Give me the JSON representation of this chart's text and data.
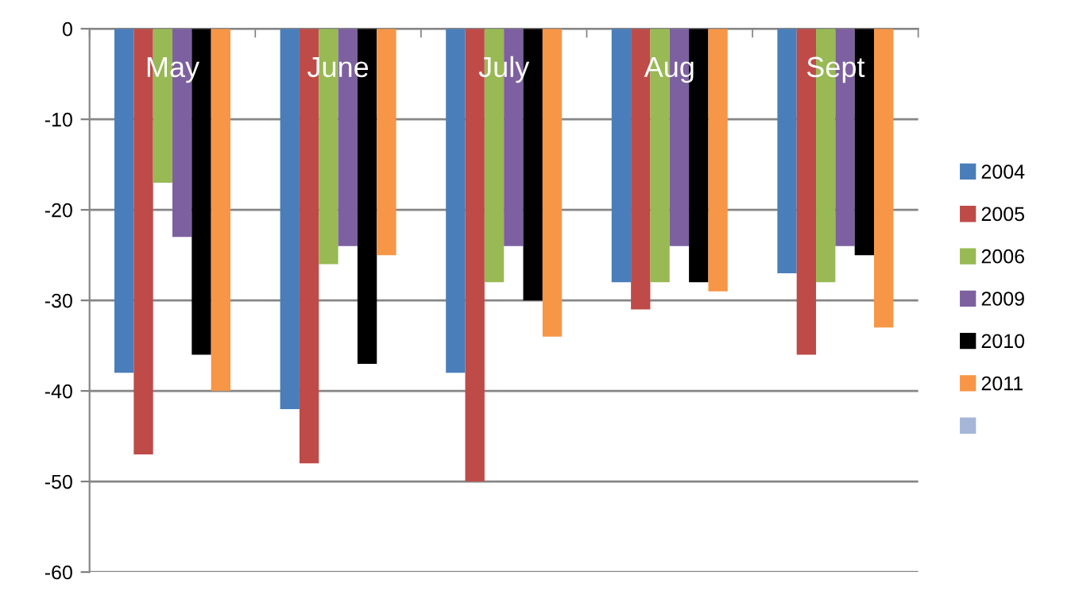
{
  "chart_data": {
    "type": "bar",
    "categories": [
      "May",
      "June",
      "July",
      "Aug",
      "Sept"
    ],
    "series": [
      {
        "name": "2004",
        "color": "#4a7ebb",
        "values": [
          -38,
          -42,
          -38,
          -28,
          -27
        ]
      },
      {
        "name": "2005",
        "color": "#be4b48",
        "values": [
          -47,
          -48,
          -50,
          -31,
          -36
        ]
      },
      {
        "name": "2006",
        "color": "#98b954",
        "values": [
          -17,
          -26,
          -28,
          -28,
          -28
        ]
      },
      {
        "name": "2009",
        "color": "#7d60a0",
        "values": [
          -23,
          -24,
          -24,
          -24,
          -24
        ]
      },
      {
        "name": "2010",
        "color": "#000000",
        "values": [
          -36,
          -37,
          -30,
          -28,
          -25
        ]
      },
      {
        "name": "2011",
        "color": "#f79646",
        "values": [
          -40,
          -25,
          -34,
          -29,
          -33
        ]
      },
      {
        "color": "#a5b6d9",
        "values": [
          null,
          null,
          null,
          null,
          null
        ]
      }
    ],
    "ylim": [
      -60,
      0
    ],
    "yticks": [
      -60,
      -50,
      -40,
      -30,
      -20,
      -10,
      0
    ],
    "grid": "y",
    "legend": "right"
  }
}
